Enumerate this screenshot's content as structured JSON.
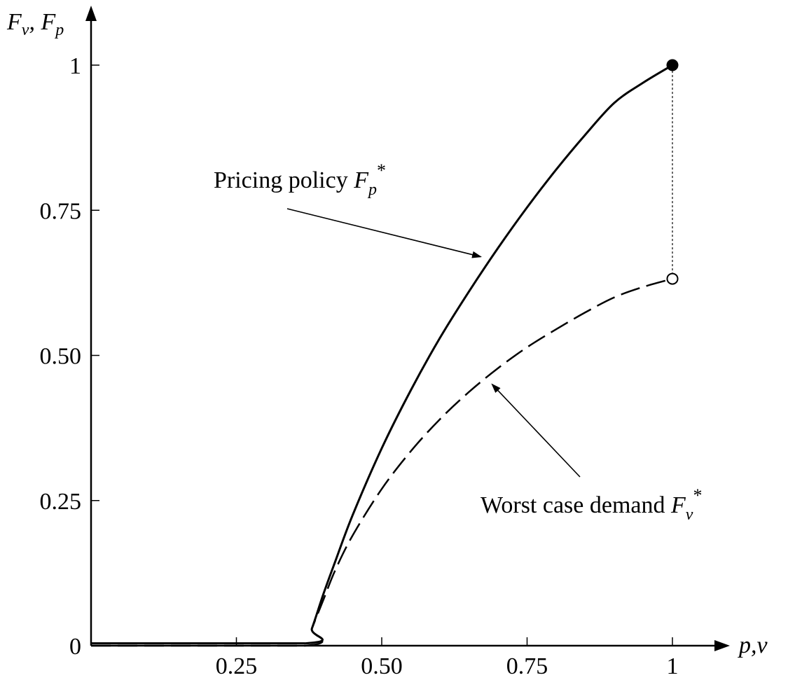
{
  "chart_data": {
    "type": "line",
    "x_axis_label": {
      "main": "p,v"
    },
    "y_axis_label": {
      "f1": "F",
      "s1": "v",
      "sep": ", ",
      "f2": "F",
      "s2": "p"
    },
    "xlim": [
      0,
      1
    ],
    "ylim": [
      0,
      1
    ],
    "x_ticks": [
      {
        "value": 0.25,
        "label": "0.25"
      },
      {
        "value": 0.5,
        "label": "0.50"
      },
      {
        "value": 0.75,
        "label": "0.75"
      },
      {
        "value": 1,
        "label": "1"
      }
    ],
    "y_ticks": [
      {
        "value": 0,
        "label": "0"
      },
      {
        "value": 0.25,
        "label": "0.25"
      },
      {
        "value": 0.5,
        "label": "0.50"
      },
      {
        "value": 0.75,
        "label": "0.75"
      },
      {
        "value": 1,
        "label": "1"
      }
    ],
    "grid": false,
    "legend": "none",
    "series": [
      {
        "name": "Pricing policy F_p*",
        "style": "solid",
        "x": [
          0,
          0.368,
          0.38,
          0.4,
          0.42,
          0.45,
          0.5,
          0.55,
          0.6,
          0.65,
          0.7,
          0.75,
          0.8,
          0.85,
          0.9,
          0.95,
          1.0
        ],
        "y": [
          0.004,
          0.004,
          0.03,
          0.09,
          0.145,
          0.225,
          0.34,
          0.44,
          0.53,
          0.61,
          0.685,
          0.755,
          0.82,
          0.88,
          0.935,
          0.97,
          1.0
        ]
      },
      {
        "name": "Worst case demand F_v*",
        "style": "dashed",
        "x": [
          0,
          0.368,
          0.38,
          0.4,
          0.42,
          0.45,
          0.5,
          0.55,
          0.6,
          0.65,
          0.7,
          0.75,
          0.8,
          0.85,
          0.9,
          0.95,
          1.0
        ],
        "y": [
          0,
          0,
          0.03,
          0.08,
          0.13,
          0.19,
          0.27,
          0.335,
          0.39,
          0.437,
          0.478,
          0.514,
          0.545,
          0.574,
          0.6,
          0.618,
          0.632
        ]
      }
    ],
    "annotations": [
      {
        "text": "Pricing policy ",
        "math": "F",
        "sub": "p",
        "sup": "*",
        "target": [
          0.67,
          0.67
        ]
      },
      {
        "text": "Worst case demand ",
        "math": "F",
        "sub": "v",
        "sup": "*",
        "target": [
          0.69,
          0.45
        ]
      }
    ],
    "markers": [
      {
        "x": 1,
        "y": 1,
        "fill": "filled"
      },
      {
        "x": 1,
        "y": 0.632,
        "fill": "open"
      }
    ],
    "jump_line": {
      "x": 1,
      "y_from": 0.632,
      "y_to": 1,
      "style": "dotted"
    }
  }
}
